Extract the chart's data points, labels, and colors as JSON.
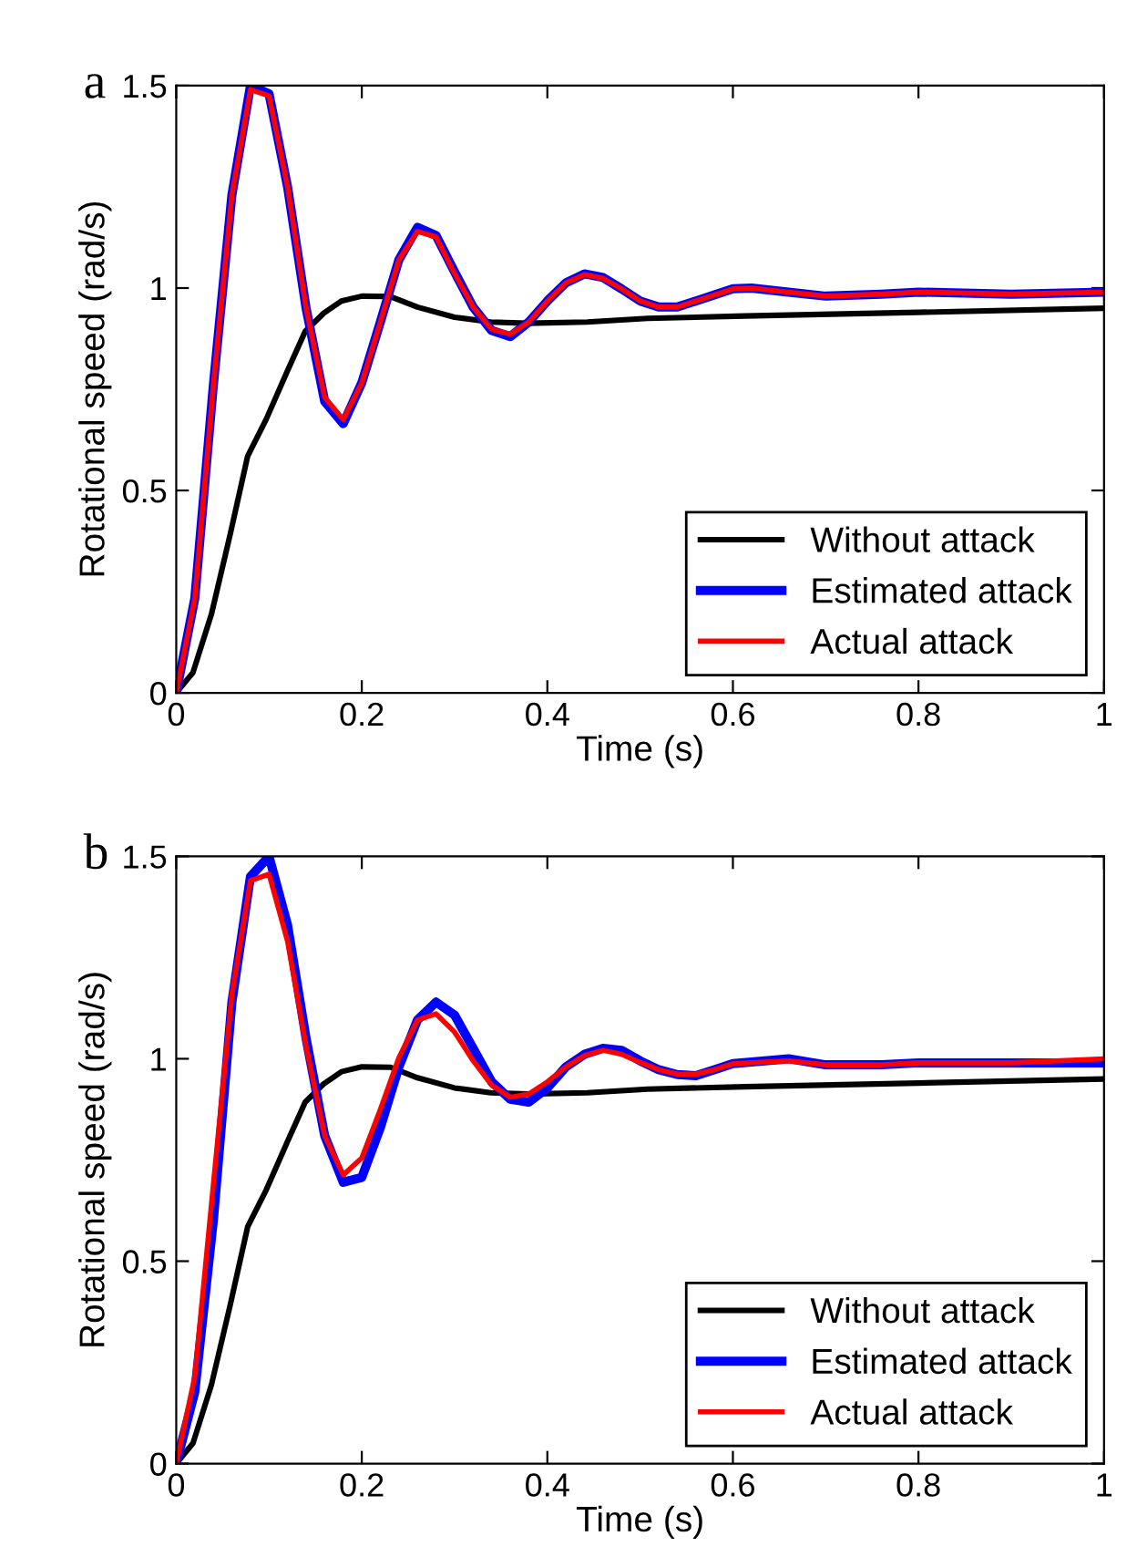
{
  "chart_data": [
    {
      "type": "line",
      "title": "a",
      "xlabel": "Time (s)",
      "ylabel": "Rotational speed (rad/s)",
      "xlim": [
        0,
        1
      ],
      "ylim": [
        0,
        1.5
      ],
      "xticks": [
        0,
        0.2,
        0.4,
        0.6,
        0.8,
        1
      ],
      "yticks": [
        0,
        0.5,
        1,
        1.5
      ],
      "grid": false,
      "legend": "bottom right",
      "line_style": "solid",
      "series": [
        {
          "name": "Without attack",
          "color": "#000000",
          "x": [
            0,
            0.018,
            0.038,
            0.058,
            0.077,
            0.097,
            0.12,
            0.139,
            0.159,
            0.178,
            0.2,
            0.231,
            0.26,
            0.3,
            0.339,
            0.378,
            0.443,
            0.508,
            0.613,
            0.8,
            1
          ],
          "values": [
            0,
            0.05,
            0.195,
            0.39,
            0.585,
            0.676,
            0.796,
            0.893,
            0.938,
            0.968,
            0.98,
            0.979,
            0.953,
            0.928,
            0.916,
            0.913,
            0.916,
            0.925,
            0.931,
            0.94,
            0.95
          ]
        },
        {
          "name": "Estimated attack",
          "color": "#0000ff",
          "x": [
            0,
            0.02,
            0.04,
            0.06,
            0.08,
            0.1,
            0.12,
            0.14,
            0.16,
            0.18,
            0.2,
            0.22,
            0.24,
            0.26,
            0.28,
            0.3,
            0.32,
            0.34,
            0.36,
            0.38,
            0.4,
            0.42,
            0.44,
            0.46,
            0.48,
            0.5,
            0.52,
            0.54,
            0.56,
            0.58,
            0.6,
            0.62,
            0.66,
            0.7,
            0.76,
            0.8,
            0.9,
            1
          ],
          "values": [
            0,
            0.233,
            0.76,
            1.23,
            1.5,
            1.48,
            1.25,
            0.95,
            0.72,
            0.665,
            0.766,
            0.916,
            1.07,
            1.15,
            1.13,
            1.04,
            0.953,
            0.895,
            0.88,
            0.916,
            0.968,
            1.013,
            1.035,
            1.026,
            0.998,
            0.968,
            0.953,
            0.953,
            0.968,
            0.983,
            0.998,
            1.0,
            0.99,
            0.98,
            0.985,
            0.99,
            0.985,
            0.99
          ]
        },
        {
          "name": "Actual attack",
          "color": "#ff0000",
          "x": [
            0,
            0.02,
            0.04,
            0.06,
            0.08,
            0.1,
            0.12,
            0.14,
            0.16,
            0.18,
            0.2,
            0.22,
            0.24,
            0.26,
            0.28,
            0.3,
            0.32,
            0.34,
            0.36,
            0.38,
            0.4,
            0.42,
            0.44,
            0.46,
            0.48,
            0.5,
            0.52,
            0.54,
            0.56,
            0.58,
            0.6,
            0.62,
            0.66,
            0.7,
            0.76,
            0.8,
            0.9,
            1
          ],
          "values": [
            0,
            0.233,
            0.76,
            1.23,
            1.49,
            1.475,
            1.25,
            0.95,
            0.73,
            0.675,
            0.766,
            0.916,
            1.07,
            1.14,
            1.126,
            1.036,
            0.953,
            0.898,
            0.886,
            0.916,
            0.968,
            1.013,
            1.033,
            1.024,
            0.998,
            0.968,
            0.953,
            0.953,
            0.968,
            0.983,
            0.998,
            1.0,
            0.99,
            0.98,
            0.985,
            0.99,
            0.985,
            0.99
          ]
        }
      ]
    },
    {
      "type": "line",
      "title": "b",
      "xlabel": "Time (s)",
      "ylabel": "Rotational speed (rad/s)",
      "xlim": [
        0,
        1
      ],
      "ylim": [
        0,
        1.5
      ],
      "xticks": [
        0,
        0.2,
        0.4,
        0.6,
        0.8,
        1
      ],
      "yticks": [
        0,
        0.5,
        1,
        1.5
      ],
      "grid": false,
      "legend": "bottom right",
      "line_style": "solid",
      "series": [
        {
          "name": "Without attack",
          "color": "#000000",
          "x": [
            0,
            0.018,
            0.038,
            0.058,
            0.077,
            0.097,
            0.12,
            0.139,
            0.159,
            0.178,
            0.2,
            0.231,
            0.26,
            0.3,
            0.339,
            0.378,
            0.443,
            0.508,
            0.613,
            0.8,
            1
          ],
          "values": [
            0,
            0.05,
            0.195,
            0.39,
            0.585,
            0.676,
            0.796,
            0.893,
            0.938,
            0.968,
            0.98,
            0.979,
            0.953,
            0.928,
            0.916,
            0.913,
            0.916,
            0.925,
            0.931,
            0.94,
            0.95
          ]
        },
        {
          "name": "Estimated attack",
          "color": "#0000ff",
          "x": [
            0,
            0.02,
            0.04,
            0.06,
            0.08,
            0.1,
            0.12,
            0.14,
            0.16,
            0.18,
            0.2,
            0.22,
            0.24,
            0.26,
            0.28,
            0.3,
            0.32,
            0.34,
            0.36,
            0.38,
            0.4,
            0.42,
            0.44,
            0.46,
            0.48,
            0.5,
            0.52,
            0.54,
            0.56,
            0.58,
            0.6,
            0.66,
            0.7,
            0.76,
            0.8,
            0.9,
            1
          ],
          "values": [
            0,
            0.177,
            0.6,
            1.14,
            1.45,
            1.5,
            1.33,
            1.05,
            0.81,
            0.695,
            0.707,
            0.83,
            0.98,
            1.096,
            1.14,
            1.108,
            1.026,
            0.943,
            0.9,
            0.893,
            0.928,
            0.98,
            1.011,
            1.026,
            1.021,
            0.995,
            0.973,
            0.961,
            0.958,
            0.973,
            0.988,
            1.0,
            0.985,
            0.985,
            0.99,
            0.99,
            0.99
          ]
        },
        {
          "name": "Actual attack",
          "color": "#ff0000",
          "x": [
            0,
            0.02,
            0.04,
            0.06,
            0.08,
            0.1,
            0.12,
            0.14,
            0.16,
            0.18,
            0.2,
            0.22,
            0.24,
            0.26,
            0.28,
            0.3,
            0.32,
            0.34,
            0.36,
            0.38,
            0.4,
            0.42,
            0.44,
            0.46,
            0.48,
            0.5,
            0.52,
            0.54,
            0.56,
            0.58,
            0.6,
            0.66,
            0.7,
            0.76,
            0.8,
            0.9,
            1
          ],
          "values": [
            0,
            0.215,
            0.69,
            1.16,
            1.44,
            1.456,
            1.29,
            1.03,
            0.81,
            0.713,
            0.755,
            0.875,
            1.003,
            1.096,
            1.111,
            1.066,
            0.995,
            0.935,
            0.905,
            0.913,
            0.943,
            0.98,
            1.008,
            1.021,
            1.011,
            0.991,
            0.973,
            0.962,
            0.962,
            0.973,
            0.988,
            0.995,
            0.985,
            0.985,
            0.99,
            0.99,
            1.0
          ]
        }
      ]
    }
  ]
}
